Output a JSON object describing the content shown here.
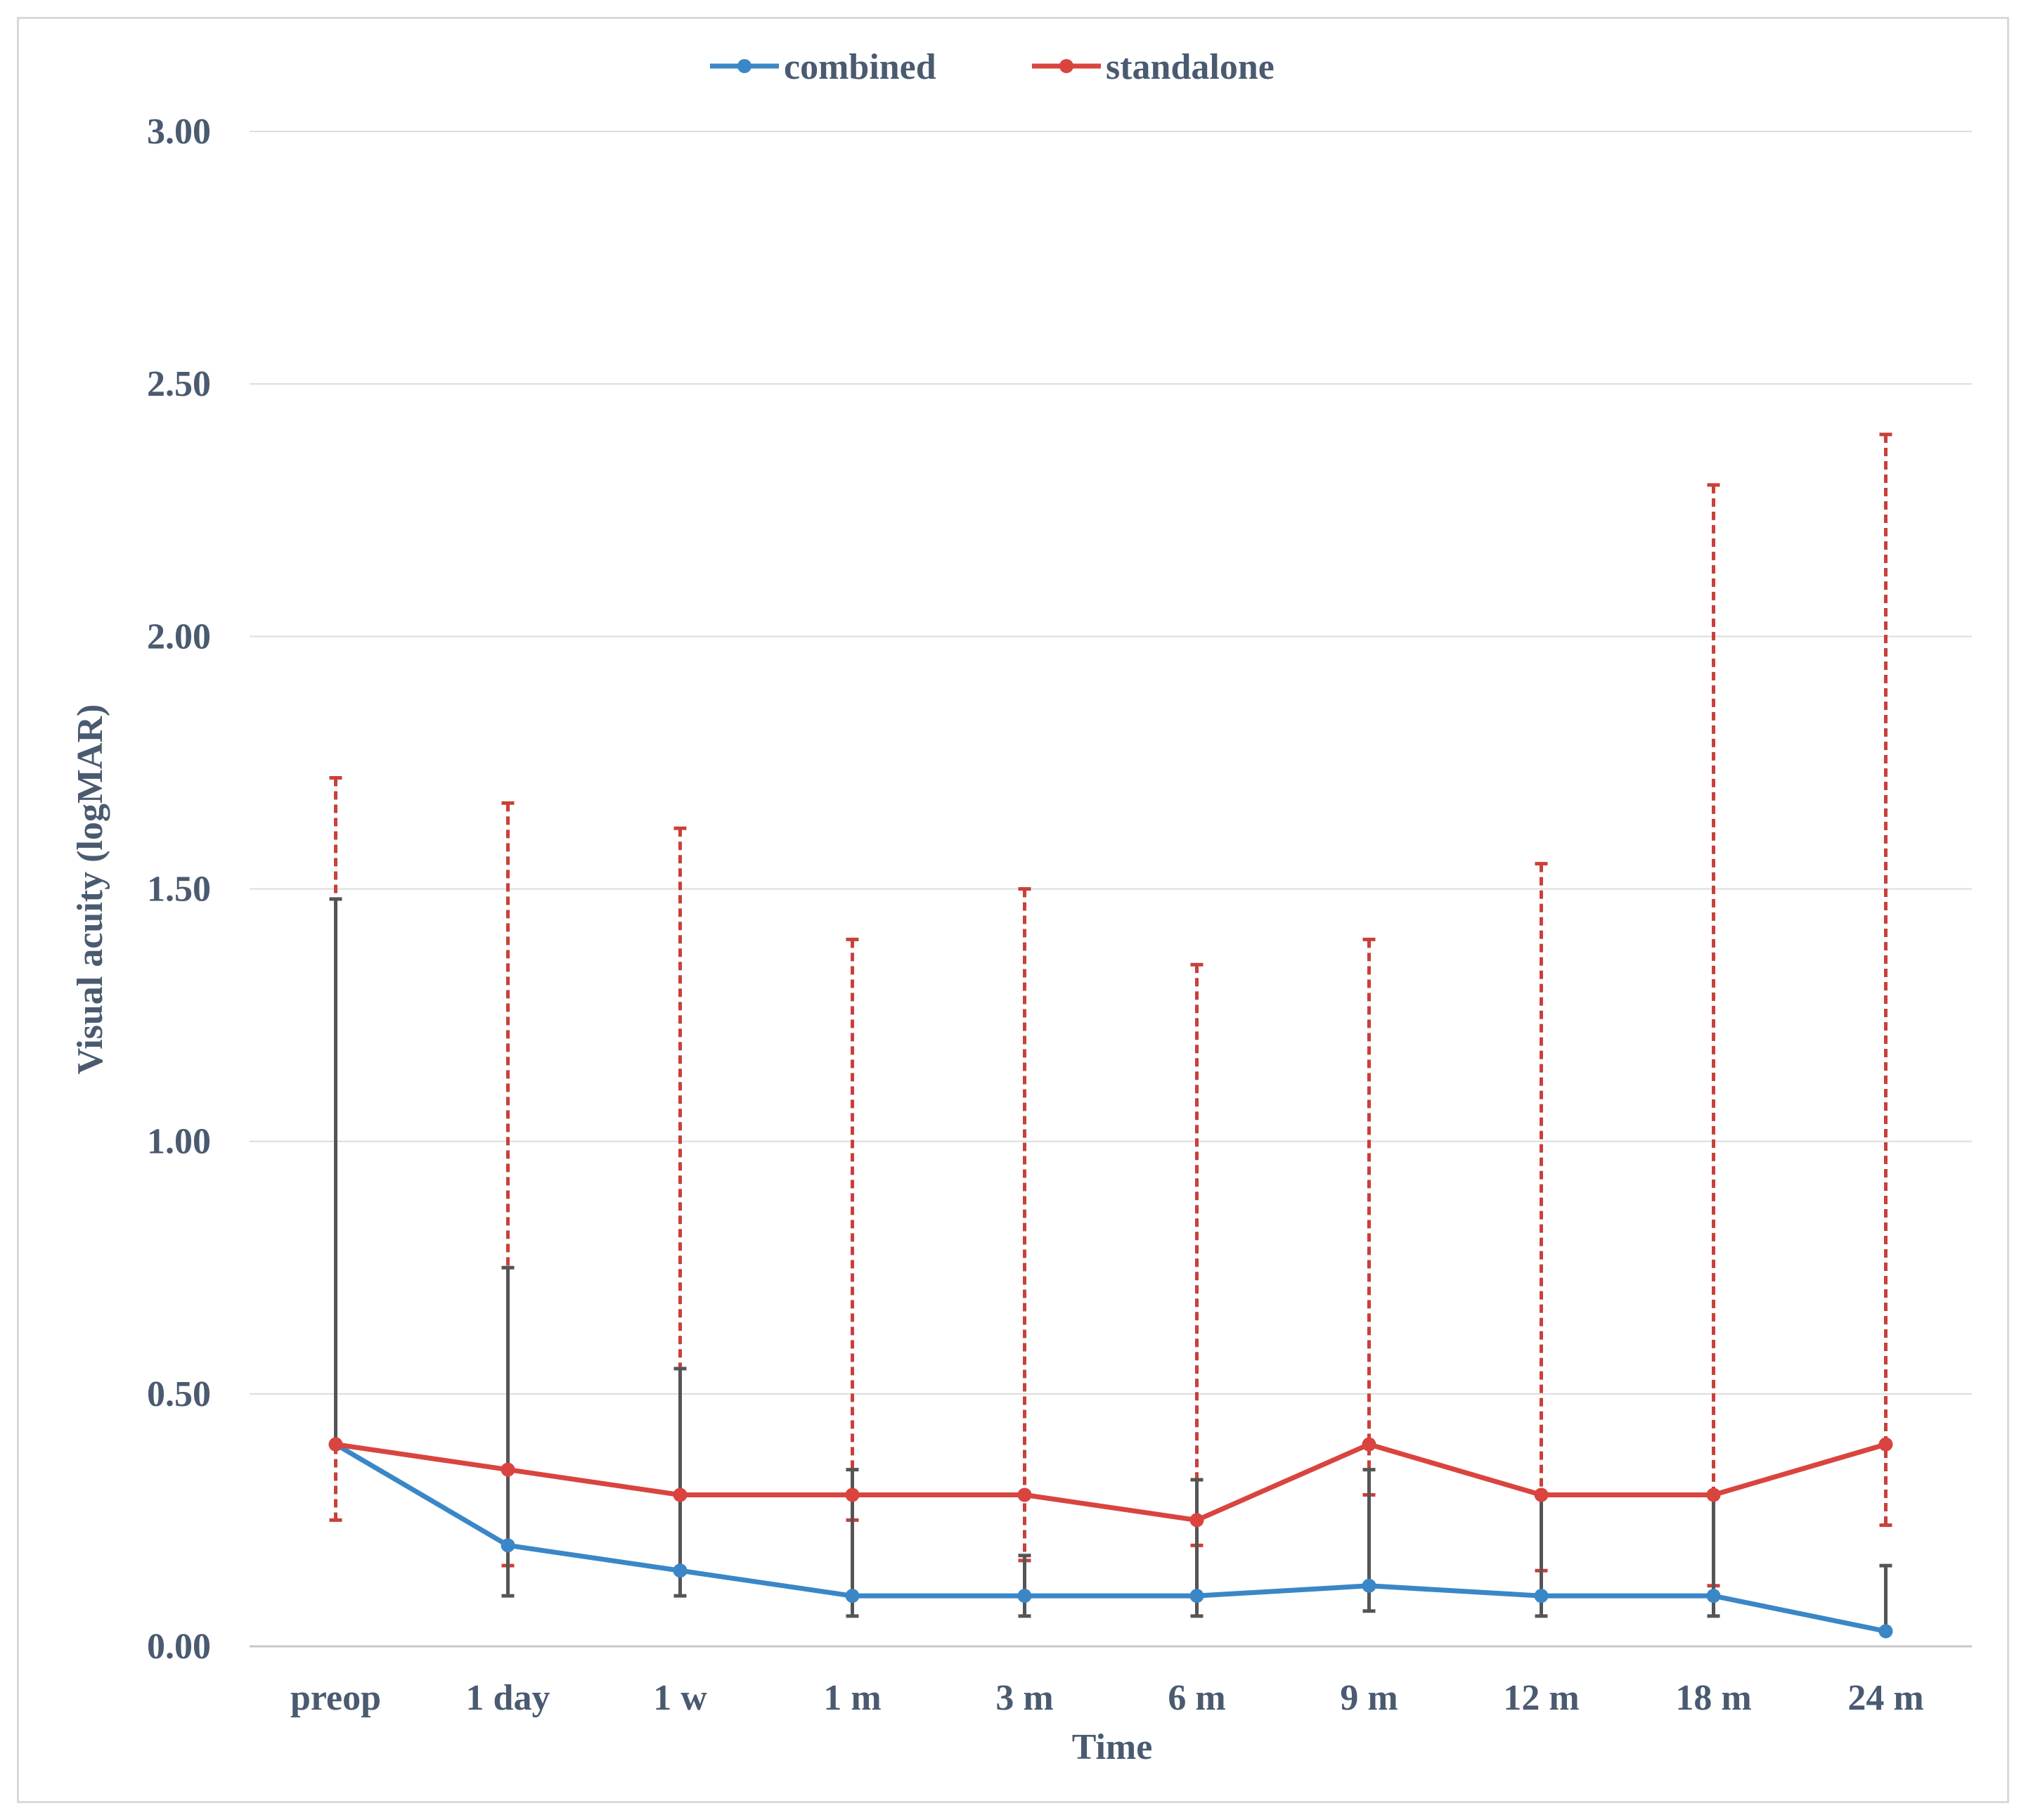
{
  "chart_data": {
    "type": "line",
    "title": "",
    "xlabel": "Time",
    "ylabel": "Visual acuity (logMAR)",
    "categories": [
      "preop",
      "1 day",
      "1 w",
      "1 m",
      "3 m",
      "6 m",
      "9 m",
      "12 m",
      "18 m",
      "24 m"
    ],
    "ylim": [
      0,
      3
    ],
    "yticks": [
      "0.00",
      "0.50",
      "1.00",
      "1.50",
      "2.00",
      "2.50",
      "3.00"
    ],
    "grid": true,
    "legend": "top-center",
    "series": [
      {
        "name": "combined",
        "color": "#3a87c7",
        "values": [
          0.4,
          0.2,
          0.15,
          0.1,
          0.1,
          0.1,
          0.12,
          0.1,
          0.1,
          0.03
        ],
        "error_upper": [
          1.48,
          0.75,
          0.55,
          0.35,
          0.18,
          0.33,
          0.35,
          0.3,
          0.3,
          0.16
        ],
        "error_lower": [
          0.4,
          0.1,
          0.1,
          0.06,
          0.06,
          0.06,
          0.07,
          0.06,
          0.06,
          0.03
        ],
        "error_color": "#555555",
        "error_style": "solid"
      },
      {
        "name": "standalone",
        "color": "#d9443f",
        "values": [
          0.4,
          0.35,
          0.3,
          0.3,
          0.3,
          0.25,
          0.4,
          0.3,
          0.3,
          0.4
        ],
        "error_upper": [
          1.72,
          1.67,
          1.62,
          1.4,
          1.5,
          1.35,
          1.4,
          1.55,
          2.3,
          2.4
        ],
        "error_lower": [
          0.25,
          0.16,
          0.15,
          0.25,
          0.17,
          0.2,
          0.3,
          0.15,
          0.12,
          0.24
        ],
        "error_color": "#c9403a",
        "error_style": "dashed"
      }
    ]
  }
}
